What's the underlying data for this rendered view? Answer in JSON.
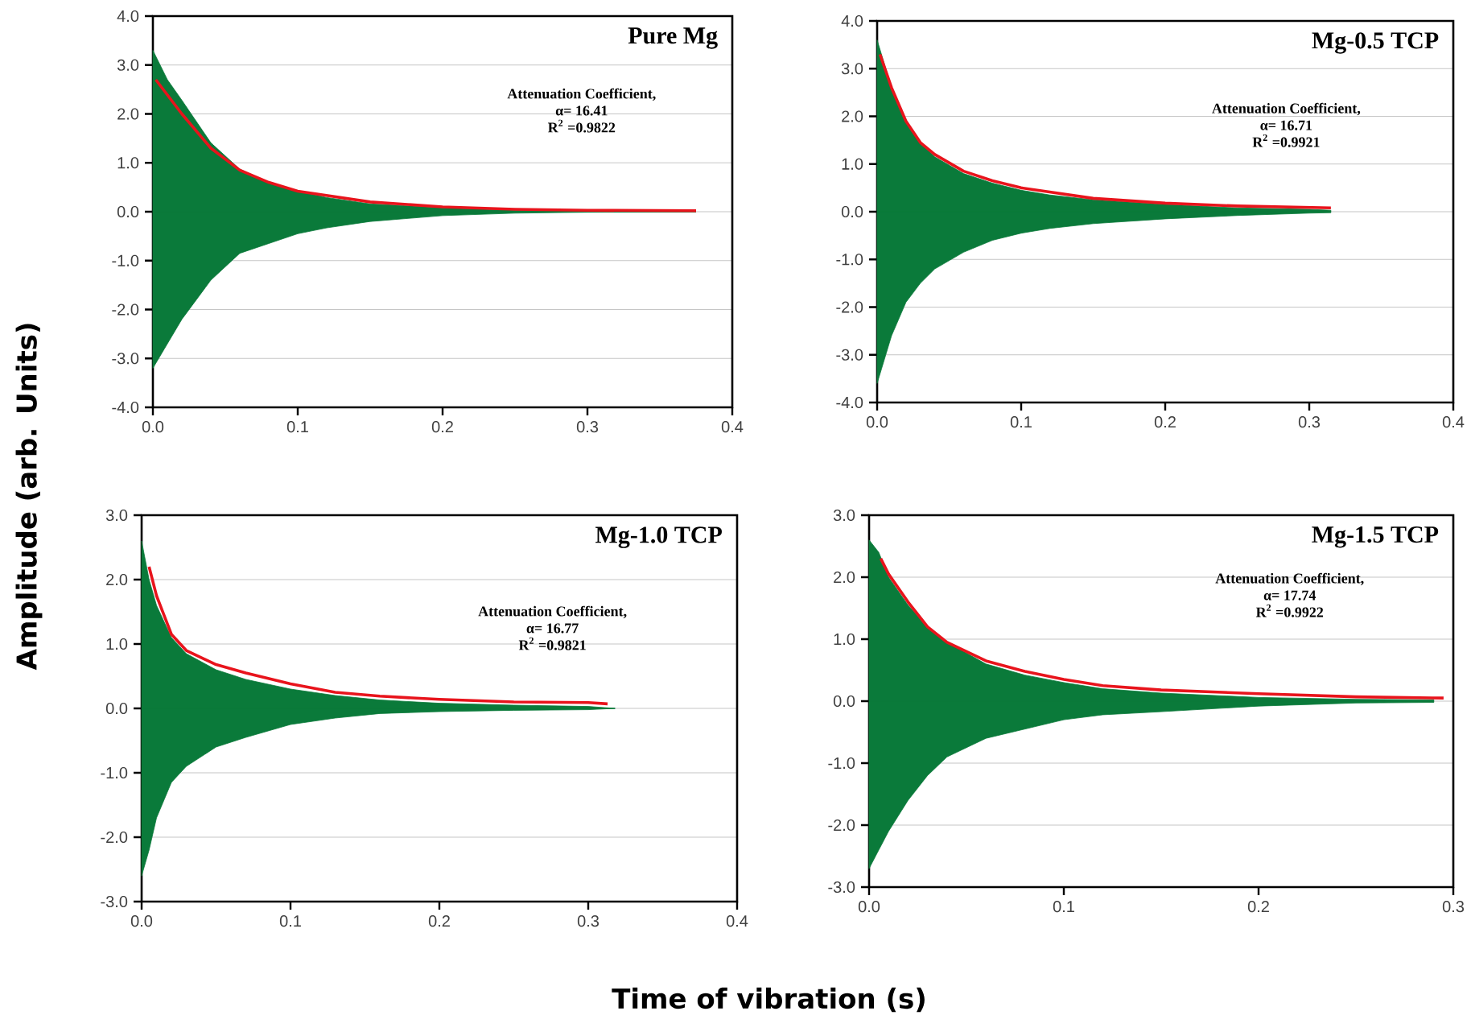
{
  "chart_data": [
    {
      "type": "area",
      "title": "Pure Mg",
      "annotations": [
        "Attenuation Coefficient,",
        "α= 16.41",
        "R$^{2}$ =0.9822"
      ],
      "ylabel": "Amplitude (arb. Units)",
      "xlabel": "Time of vibration (s)",
      "grid": "y",
      "xlim": [
        0,
        0.4
      ],
      "ylim": [
        -4,
        4
      ],
      "xticks": [
        {
          "value": 0,
          "label": "0.0"
        },
        {
          "value": 0.1,
          "label": "0.1"
        },
        {
          "value": 0.2,
          "label": "0.2"
        },
        {
          "value": 0.3,
          "label": "0.3"
        },
        {
          "value": 0.4,
          "label": "0.4"
        }
      ],
      "yticks": [
        {
          "value": -4,
          "label": "-4.0"
        },
        {
          "value": -3,
          "label": "-3.0"
        },
        {
          "value": -2,
          "label": "-2.0"
        },
        {
          "value": -1,
          "label": "-1.0"
        },
        {
          "value": 0,
          "label": "0.0"
        },
        {
          "value": 1,
          "label": "1.0"
        },
        {
          "value": 2,
          "label": "2.0"
        },
        {
          "value": 3,
          "label": "3.0"
        },
        {
          "value": 4,
          "label": "4.0"
        }
      ],
      "series": [
        {
          "color": "#0a7a3a",
          "x": [
            0,
            0.01,
            0.02,
            0.04,
            0.06,
            0.08,
            0.1,
            0.12,
            0.15,
            0.2,
            0.25,
            0.3,
            0.375
          ],
          "values": [
            3.3,
            2.7,
            2.28,
            1.41,
            0.87,
            0.6,
            0.43,
            0.29,
            0.16,
            0.08,
            0.03,
            0.01,
            0
          ]
        },
        {
          "color": "#0a7a3a",
          "x": [
            0,
            0.01,
            0.02,
            0.04,
            0.06,
            0.08,
            0.1,
            0.12,
            0.15,
            0.2,
            0.25,
            0.3,
            0.375
          ],
          "values": [
            -3.2,
            -2.7,
            -2.2,
            -1.4,
            -0.85,
            -0.65,
            -0.45,
            -0.33,
            -0.2,
            -0.08,
            -0.03,
            -0.01,
            0
          ]
        },
        {
          "type": "line",
          "color": "#e8141c",
          "x": [
            0.002,
            0.02,
            0.04,
            0.06,
            0.08,
            0.1,
            0.15,
            0.2,
            0.25,
            0.3,
            0.375
          ],
          "values": [
            2.7,
            2.0,
            1.3,
            0.85,
            0.6,
            0.42,
            0.2,
            0.1,
            0.05,
            0.03,
            0.02
          ]
        }
      ]
    },
    {
      "type": "area",
      "title": "Mg-0.5 TCP",
      "annotations": [
        "Attenuation Coefficient,",
        "α= 16.71",
        "R$^{2}$ =0.9921"
      ],
      "grid": "y",
      "xlim": [
        0,
        0.4
      ],
      "ylim": [
        -4,
        4
      ],
      "xticks": [
        {
          "value": 0,
          "label": "0.0"
        },
        {
          "value": 0.1,
          "label": "0.1"
        },
        {
          "value": 0.2,
          "label": "0.2"
        },
        {
          "value": 0.3,
          "label": "0.3"
        },
        {
          "value": 0.4,
          "label": "0.4"
        }
      ],
      "yticks": [
        {
          "value": -4,
          "label": "-4.0"
        },
        {
          "value": -3,
          "label": "-3.0"
        },
        {
          "value": -2,
          "label": "-2.0"
        },
        {
          "value": -1,
          "label": "-1.0"
        },
        {
          "value": 0,
          "label": "0.0"
        },
        {
          "value": 1,
          "label": "1.0"
        },
        {
          "value": 2,
          "label": "2.0"
        },
        {
          "value": 3,
          "label": "3.0"
        },
        {
          "value": 4,
          "label": "4.0"
        }
      ],
      "series": [
        {
          "color": "#0a7a3a",
          "x": [
            0,
            0.01,
            0.02,
            0.03,
            0.04,
            0.06,
            0.08,
            0.1,
            0.12,
            0.15,
            0.2,
            0.25,
            0.3,
            0.315
          ],
          "values": [
            3.6,
            2.6,
            1.9,
            1.45,
            1.15,
            0.8,
            0.6,
            0.45,
            0.35,
            0.25,
            0.15,
            0.08,
            0.05,
            0.03
          ]
        },
        {
          "color": "#0a7a3a",
          "x": [
            0,
            0.01,
            0.02,
            0.03,
            0.04,
            0.06,
            0.08,
            0.1,
            0.12,
            0.15,
            0.2,
            0.25,
            0.3,
            0.315
          ],
          "values": [
            -3.6,
            -2.6,
            -1.9,
            -1.5,
            -1.2,
            -0.85,
            -0.6,
            -0.45,
            -0.35,
            -0.25,
            -0.15,
            -0.08,
            -0.03,
            -0.02
          ]
        },
        {
          "type": "line",
          "color": "#e8141c",
          "x": [
            0.002,
            0.01,
            0.02,
            0.03,
            0.04,
            0.06,
            0.08,
            0.1,
            0.15,
            0.2,
            0.25,
            0.315
          ],
          "values": [
            3.3,
            2.6,
            1.9,
            1.45,
            1.2,
            0.85,
            0.65,
            0.5,
            0.28,
            0.18,
            0.12,
            0.08
          ]
        }
      ]
    },
    {
      "type": "area",
      "title": "Mg-1.0 TCP",
      "annotations": [
        "Attenuation Coefficient,",
        "α= 16.77",
        "R$^{2}$ =0.9821"
      ],
      "grid": "y",
      "xlim": [
        0,
        0.4
      ],
      "ylim": [
        -3,
        3
      ],
      "xticks": [
        {
          "value": 0,
          "label": "0.0"
        },
        {
          "value": 0.1,
          "label": "0.1"
        },
        {
          "value": 0.2,
          "label": "0.2"
        },
        {
          "value": 0.3,
          "label": "0.3"
        },
        {
          "value": 0.4,
          "label": "0.4"
        }
      ],
      "yticks": [
        {
          "value": -3,
          "label": "-3.0"
        },
        {
          "value": -2,
          "label": "-2.0"
        },
        {
          "value": -1,
          "label": "-1.0"
        },
        {
          "value": 0,
          "label": "0.0"
        },
        {
          "value": 1,
          "label": "1.0"
        },
        {
          "value": 2,
          "label": "2.0"
        },
        {
          "value": 3,
          "label": "3.0"
        }
      ],
      "series": [
        {
          "color": "#0a7a3a",
          "x": [
            0,
            0.005,
            0.01,
            0.02,
            0.03,
            0.05,
            0.07,
            0.1,
            0.13,
            0.16,
            0.2,
            0.25,
            0.3,
            0.318
          ],
          "values": [
            2.6,
            2.0,
            1.6,
            1.1,
            0.85,
            0.6,
            0.45,
            0.3,
            0.2,
            0.13,
            0.08,
            0.05,
            0.03,
            0
          ]
        },
        {
          "color": "#0a7a3a",
          "x": [
            0,
            0.005,
            0.01,
            0.02,
            0.03,
            0.05,
            0.07,
            0.1,
            0.13,
            0.16,
            0.2,
            0.25,
            0.3,
            0.318
          ],
          "values": [
            -2.6,
            -2.2,
            -1.7,
            -1.15,
            -0.9,
            -0.6,
            -0.45,
            -0.25,
            -0.15,
            -0.08,
            -0.05,
            -0.03,
            -0.02,
            0
          ]
        },
        {
          "type": "line",
          "color": "#e8141c",
          "x": [
            0.005,
            0.01,
            0.02,
            0.03,
            0.05,
            0.07,
            0.1,
            0.13,
            0.16,
            0.2,
            0.25,
            0.3,
            0.313
          ],
          "values": [
            2.2,
            1.75,
            1.15,
            0.9,
            0.68,
            0.55,
            0.38,
            0.25,
            0.19,
            0.14,
            0.1,
            0.09,
            0.07
          ]
        }
      ]
    },
    {
      "type": "area",
      "title": "Mg-1.5 TCP",
      "annotations": [
        "Attenuation Coefficient,",
        "α= 17.74",
        "R$^{2}$ =0.9922"
      ],
      "grid": "y",
      "xlim": [
        0,
        0.3
      ],
      "ylim": [
        -3,
        3
      ],
      "xticks": [
        {
          "value": 0,
          "label": "0.0"
        },
        {
          "value": 0.1,
          "label": "0.1"
        },
        {
          "value": 0.2,
          "label": "0.2"
        },
        {
          "value": 0.3,
          "label": "0.3"
        }
      ],
      "yticks": [
        {
          "value": -3,
          "label": "-3.0"
        },
        {
          "value": -2,
          "label": "-2.0"
        },
        {
          "value": -1,
          "label": "-1.0"
        },
        {
          "value": 0,
          "label": "0.0"
        },
        {
          "value": 1,
          "label": "1.0"
        },
        {
          "value": 2,
          "label": "2.0"
        },
        {
          "value": 3,
          "label": "3.0"
        }
      ],
      "series": [
        {
          "color": "#0a7a3a",
          "x": [
            0,
            0.005,
            0.01,
            0.02,
            0.03,
            0.04,
            0.06,
            0.08,
            0.1,
            0.12,
            0.15,
            0.2,
            0.25,
            0.29
          ],
          "values": [
            2.6,
            2.4,
            2.0,
            1.55,
            1.2,
            0.95,
            0.6,
            0.42,
            0.3,
            0.2,
            0.13,
            0.06,
            0.03,
            0.02
          ]
        },
        {
          "color": "#0a7a3a",
          "x": [
            0,
            0.005,
            0.01,
            0.02,
            0.03,
            0.04,
            0.06,
            0.08,
            0.1,
            0.12,
            0.15,
            0.2,
            0.25,
            0.29
          ],
          "values": [
            -2.7,
            -2.4,
            -2.1,
            -1.6,
            -1.2,
            -0.9,
            -0.6,
            -0.45,
            -0.3,
            -0.22,
            -0.17,
            -0.08,
            -0.03,
            -0.02
          ]
        },
        {
          "type": "line",
          "color": "#e8141c",
          "x": [
            0.006,
            0.01,
            0.02,
            0.03,
            0.04,
            0.06,
            0.08,
            0.1,
            0.12,
            0.15,
            0.2,
            0.25,
            0.295
          ],
          "values": [
            2.3,
            2.05,
            1.6,
            1.2,
            0.95,
            0.65,
            0.48,
            0.35,
            0.25,
            0.18,
            0.12,
            0.07,
            0.05
          ]
        }
      ]
    }
  ]
}
